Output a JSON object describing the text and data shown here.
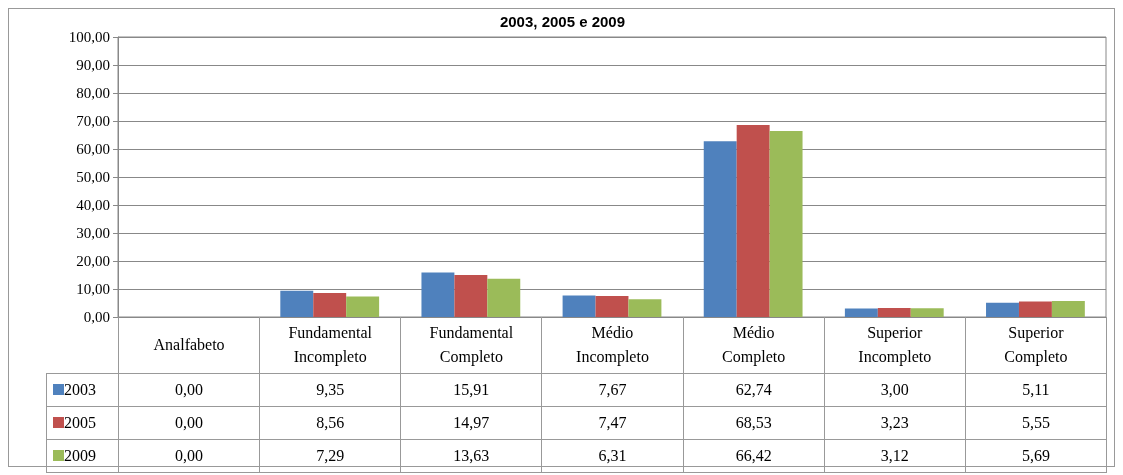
{
  "chart_data": {
    "type": "bar",
    "title": "2003, 2005 e 2009",
    "categories": [
      "Analfabeto",
      "Fundamental Incompleto",
      "Fundamental Completo",
      "Médio Incompleto",
      "Médio Completo",
      "Superior Incompleto",
      "Superior Completo"
    ],
    "series": [
      {
        "name": "2003",
        "color": "#4f81bd",
        "values": [
          0.0,
          9.35,
          15.91,
          7.67,
          62.74,
          3.0,
          5.11
        ],
        "value_labels": [
          "0,00",
          "9,35",
          "15,91",
          "7,67",
          "62,74",
          "3,00",
          "5,11"
        ]
      },
      {
        "name": "2005",
        "color": "#c0504d",
        "values": [
          0.0,
          8.56,
          14.97,
          7.47,
          68.53,
          3.23,
          5.55
        ],
        "value_labels": [
          "0,00",
          "8,56",
          "14,97",
          "7,47",
          "68,53",
          "3,23",
          "5,55"
        ]
      },
      {
        "name": "2009",
        "color": "#9bbb59",
        "values": [
          0.0,
          7.29,
          13.63,
          6.31,
          66.42,
          3.12,
          5.69
        ],
        "value_labels": [
          "0,00",
          "7,29",
          "13,63",
          "6,31",
          "66,42",
          "3,12",
          "5,69"
        ]
      }
    ],
    "ylim": [
      0,
      100
    ],
    "yticks": [
      {
        "value": 0,
        "label": "0,00"
      },
      {
        "value": 10,
        "label": "10,00"
      },
      {
        "value": 20,
        "label": "20,00"
      },
      {
        "value": 30,
        "label": "30,00"
      },
      {
        "value": 40,
        "label": "40,00"
      },
      {
        "value": 50,
        "label": "50,00"
      },
      {
        "value": 60,
        "label": "60,00"
      },
      {
        "value": 70,
        "label": "70,00"
      },
      {
        "value": 80,
        "label": "80,00"
      },
      {
        "value": 90,
        "label": "90,00"
      },
      {
        "value": 100,
        "label": "100,00"
      }
    ],
    "grid": "y",
    "legend": "bottom"
  }
}
